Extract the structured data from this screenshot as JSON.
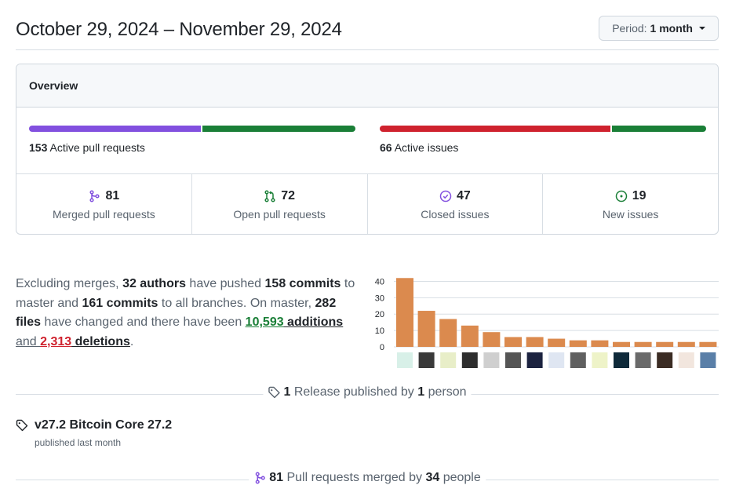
{
  "header": {
    "title": "October 29, 2024 – November 29, 2024",
    "period_label": "Period:",
    "period_value": "1 month"
  },
  "overview": {
    "heading": "Overview",
    "pull_requests": {
      "count": "153",
      "label": "Active pull requests",
      "merged_fraction": 0.53,
      "merged_color": "#8250df",
      "open_color": "#1a7f37"
    },
    "issues": {
      "count": "66",
      "label": "Active issues",
      "closed_fraction": 0.71,
      "closed_color": "#cf222e",
      "new_color": "#1a7f37"
    },
    "stats": [
      {
        "value": "81",
        "label": "Merged pull requests",
        "icon": "git-merge-icon",
        "color": "#8250df"
      },
      {
        "value": "72",
        "label": "Open pull requests",
        "icon": "git-pull-request-icon",
        "color": "#1a7f37"
      },
      {
        "value": "47",
        "label": "Closed issues",
        "icon": "issue-closed-icon",
        "color": "#8250df"
      },
      {
        "value": "19",
        "label": "New issues",
        "icon": "issue-opened-icon",
        "color": "#1a7f37"
      }
    ]
  },
  "summary": {
    "t1": "Excluding merges, ",
    "authors": "32 authors",
    "t2": " have pushed ",
    "commits_master": "158 commits",
    "t3": " to master and ",
    "commits_all": "161 commits",
    "t4": " to all branches. On master, ",
    "files": "282 files",
    "t5": " have changed and there have been ",
    "additions_num": "10,593",
    "additions_word": " additions",
    "t6": "and ",
    "deletions_num": "2,313",
    "deletions_word": " deletions",
    "t7": "."
  },
  "chart_data": {
    "type": "bar",
    "values": [
      42,
      22,
      17,
      13,
      9,
      6,
      6,
      5,
      4,
      4,
      3,
      3,
      3,
      3,
      3
    ],
    "ylim": [
      0,
      45
    ],
    "yticks": [
      "0",
      "10",
      "20",
      "30",
      "40"
    ],
    "bar_color": "#db8a4e",
    "grid": true,
    "x_axis": "contributor avatars"
  },
  "releases": {
    "count": "1",
    "t1": " Release published by ",
    "people": "1",
    "t2": " person",
    "item_title": "v27.2 Bitcoin Core 27.2",
    "item_sub": "published last month"
  },
  "merged_section": {
    "count": "81",
    "t1": " Pull requests merged by ",
    "people": "34",
    "t2": " people"
  }
}
